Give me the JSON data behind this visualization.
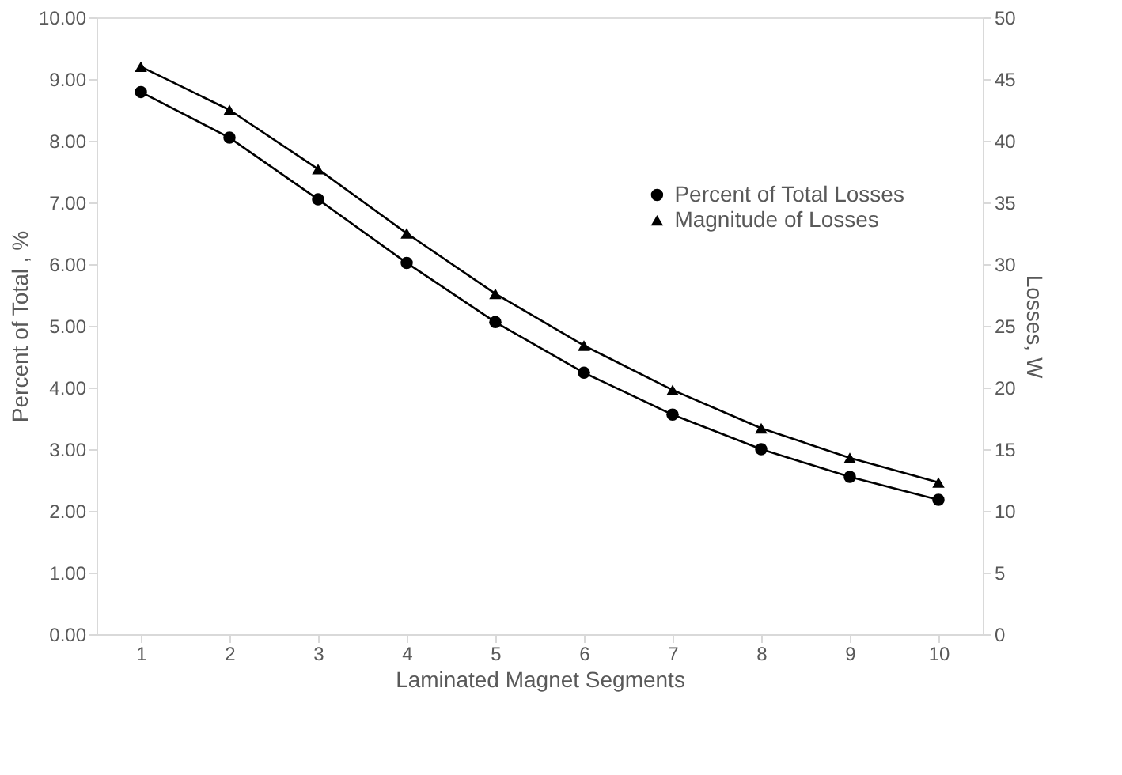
{
  "chart_data": {
    "type": "line",
    "xlabel": "Laminated Magnet Segments",
    "ylabel": "Percent of Total , %",
    "y2label": "Losses, W",
    "categories": [
      "1",
      "2",
      "3",
      "4",
      "5",
      "6",
      "7",
      "8",
      "9",
      "10"
    ],
    "series": [
      {
        "name": "Percent of Total Losses",
        "color": "#000000",
        "marker": "circle",
        "values": [
          8.79,
          8.05,
          7.05,
          6.02,
          5.06,
          4.24,
          3.56,
          3.0,
          2.55,
          2.18
        ]
      },
      {
        "name": "Magnitude of Losses",
        "color": "#000000",
        "marker": "triangle",
        "axis": "y2",
        "values": [
          46.0,
          42.5,
          37.7,
          32.5,
          27.6,
          23.4,
          19.8,
          16.7,
          14.3,
          12.3
        ]
      }
    ],
    "ylim": [
      0,
      10
    ],
    "yticks": [
      {
        "value": 0,
        "label": "0.00"
      },
      {
        "value": 1,
        "label": "1.00"
      },
      {
        "value": 2,
        "label": "2.00"
      },
      {
        "value": 3,
        "label": "3.00"
      },
      {
        "value": 4,
        "label": "4.00"
      },
      {
        "value": 5,
        "label": "5.00"
      },
      {
        "value": 6,
        "label": "6.00"
      },
      {
        "value": 7,
        "label": "7.00"
      },
      {
        "value": 8,
        "label": "8.00"
      },
      {
        "value": 9,
        "label": "9.00"
      },
      {
        "value": 10,
        "label": "10.00"
      }
    ],
    "y2lim": [
      0,
      50
    ],
    "y2ticks": [
      0,
      5,
      10,
      15,
      20,
      25,
      30,
      35,
      40,
      45,
      50
    ],
    "grid": false,
    "legend": "right",
    "line_style": "solid"
  }
}
